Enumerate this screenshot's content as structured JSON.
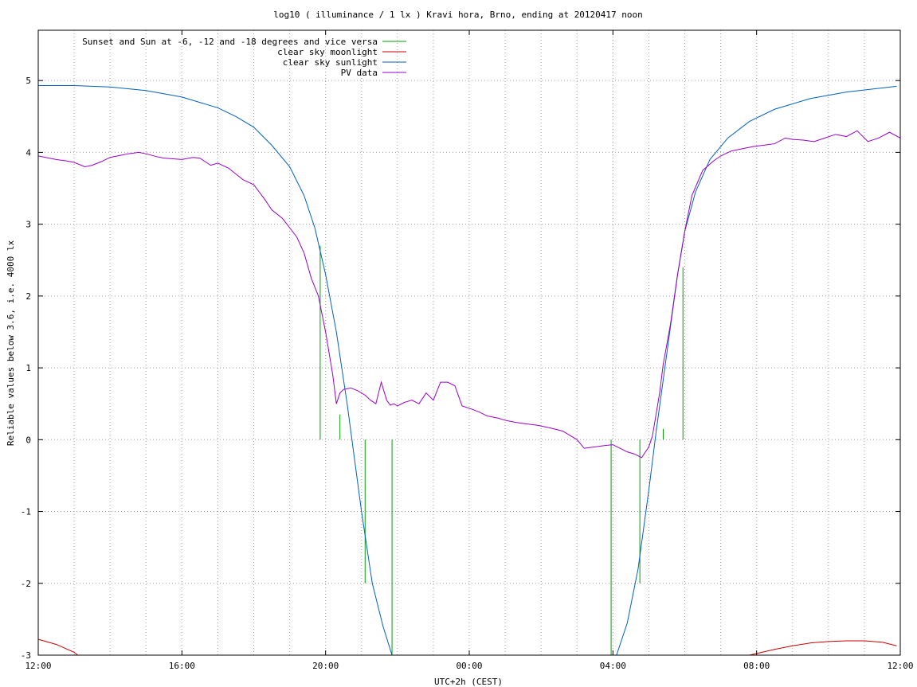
{
  "chart_data": {
    "type": "line",
    "title": "log10 ( illuminance / 1 lx ) Kravi hora, Brno, ending at 20120417 noon",
    "xlabel": "UTC+2h (CEST)",
    "ylabel": "Reliable values below 3.6, i.e. 4000 lx",
    "xlim": [
      0,
      24
    ],
    "ylim": [
      -3,
      5.7
    ],
    "x_tick_values": [
      0,
      4,
      8,
      12,
      16,
      20,
      24
    ],
    "x_tick_labels": [
      "12:00",
      "16:00",
      "20:00",
      "00:00",
      "04:00",
      "08:00",
      "12:00"
    ],
    "y_tick_values": [
      -3,
      -2,
      -1,
      0,
      1,
      2,
      3,
      4,
      5
    ],
    "y_tick_labels": [
      "-3",
      "-2",
      "-1",
      "0",
      "1",
      "2",
      "3",
      "4",
      "5"
    ],
    "grid": true,
    "legend_position": "top-left",
    "series": [
      {
        "name": "Sunset and Sun at -6, -12 and -18 degrees and vice versa",
        "color": "#00a000",
        "kind": "impulses",
        "points": [
          {
            "x": 7.85,
            "y0": 0,
            "y1": 2.7
          },
          {
            "x": 8.4,
            "y0": 0,
            "y1": 0.35
          },
          {
            "x": 9.1,
            "y0": 0,
            "y1": -2.0
          },
          {
            "x": 9.85,
            "y0": 0,
            "y1": -3.0
          },
          {
            "x": 15.95,
            "y0": 0,
            "y1": -3.0
          },
          {
            "x": 16.75,
            "y0": 0,
            "y1": -2.0
          },
          {
            "x": 17.4,
            "y0": 0,
            "y1": 0.15
          },
          {
            "x": 17.95,
            "y0": 0,
            "y1": 2.4
          }
        ]
      },
      {
        "name": "clear sky moonlight",
        "color": "#cc0000",
        "kind": "line",
        "x": [
          0,
          0.5,
          1.0,
          1.1,
          19.8,
          20.5,
          21.0,
          21.5,
          22.0,
          22.5,
          23.0,
          23.5,
          23.9
        ],
        "y": [
          -2.78,
          -2.85,
          -2.96,
          -3.0,
          -3.0,
          -2.92,
          -2.87,
          -2.83,
          -2.81,
          -2.8,
          -2.8,
          -2.82,
          -2.87
        ]
      },
      {
        "name": "clear sky sunlight",
        "color": "#0060c0",
        "kind": "line",
        "x": [
          0,
          1,
          2,
          3,
          4,
          5,
          5.5,
          6,
          6.5,
          7,
          7.4,
          7.7,
          8.0,
          8.3,
          8.6,
          9.0,
          9.3,
          9.6,
          9.85,
          16.1,
          16.4,
          16.7,
          17.0,
          17.2,
          17.5,
          17.8,
          18.0,
          18.3,
          18.7,
          19.2,
          19.8,
          20.5,
          21.5,
          22.5,
          23.9
        ],
        "y": [
          4.93,
          4.93,
          4.91,
          4.86,
          4.77,
          4.62,
          4.5,
          4.35,
          4.1,
          3.8,
          3.4,
          2.95,
          2.3,
          1.5,
          0.5,
          -1.0,
          -2.0,
          -2.6,
          -3.0,
          -3.0,
          -2.55,
          -1.8,
          -0.7,
          0.1,
          1.2,
          2.3,
          2.9,
          3.45,
          3.9,
          4.2,
          4.43,
          4.6,
          4.75,
          4.84,
          4.92
        ]
      },
      {
        "name": "PV data",
        "color": "#9900cc",
        "kind": "line",
        "x": [
          0,
          0.3,
          0.5,
          0.8,
          1.0,
          1.3,
          1.5,
          1.7,
          1.8,
          2.0,
          2.3,
          2.5,
          2.8,
          3.0,
          3.3,
          3.5,
          4.0,
          4.3,
          4.5,
          4.8,
          5.0,
          5.3,
          5.5,
          5.7,
          6.0,
          6.3,
          6.5,
          6.8,
          7.0,
          7.2,
          7.4,
          7.6,
          7.8,
          8.0,
          8.2,
          8.3,
          8.4,
          8.5,
          8.7,
          8.9,
          9.1,
          9.25,
          9.4,
          9.55,
          9.7,
          9.8,
          9.9,
          10.0,
          10.2,
          10.4,
          10.6,
          10.8,
          11.0,
          11.2,
          11.4,
          11.6,
          11.8,
          12.1,
          12.3,
          12.5,
          12.8,
          13.0,
          13.3,
          13.6,
          13.9,
          14.2,
          14.6,
          15.0,
          15.2,
          15.5,
          15.8,
          16.0,
          16.2,
          16.4,
          16.6,
          16.8,
          17.0,
          17.1,
          17.2,
          17.3,
          17.4,
          17.6,
          17.8,
          18.0,
          18.2,
          18.5,
          18.8,
          19.0,
          19.3,
          19.6,
          19.9,
          20.2,
          20.5,
          20.8,
          21.0,
          21.3,
          21.6,
          21.9,
          22.2,
          22.5,
          22.8,
          23.1,
          23.4,
          23.7,
          24.0
        ],
        "y": [
          3.95,
          3.92,
          3.9,
          3.88,
          3.86,
          3.8,
          3.82,
          3.86,
          3.88,
          3.93,
          3.96,
          3.98,
          4.0,
          3.98,
          3.94,
          3.92,
          3.9,
          3.93,
          3.92,
          3.82,
          3.85,
          3.78,
          3.7,
          3.62,
          3.55,
          3.35,
          3.2,
          3.08,
          2.95,
          2.82,
          2.6,
          2.25,
          2.0,
          1.5,
          0.9,
          0.5,
          0.65,
          0.7,
          0.72,
          0.68,
          0.62,
          0.55,
          0.5,
          0.8,
          0.55,
          0.48,
          0.5,
          0.47,
          0.52,
          0.55,
          0.5,
          0.65,
          0.55,
          0.8,
          0.8,
          0.75,
          0.47,
          0.42,
          0.38,
          0.33,
          0.3,
          0.27,
          0.24,
          0.22,
          0.2,
          0.17,
          0.12,
          0.0,
          -0.12,
          -0.1,
          -0.08,
          -0.07,
          -0.12,
          -0.17,
          -0.2,
          -0.25,
          -0.1,
          0.05,
          0.35,
          0.65,
          1.05,
          1.6,
          2.3,
          2.9,
          3.4,
          3.75,
          3.88,
          3.95,
          4.02,
          4.05,
          4.08,
          4.1,
          4.12,
          4.2,
          4.18,
          4.17,
          4.15,
          4.2,
          4.25,
          4.22,
          4.3,
          4.15,
          4.2,
          4.28,
          4.2
        ]
      }
    ]
  }
}
